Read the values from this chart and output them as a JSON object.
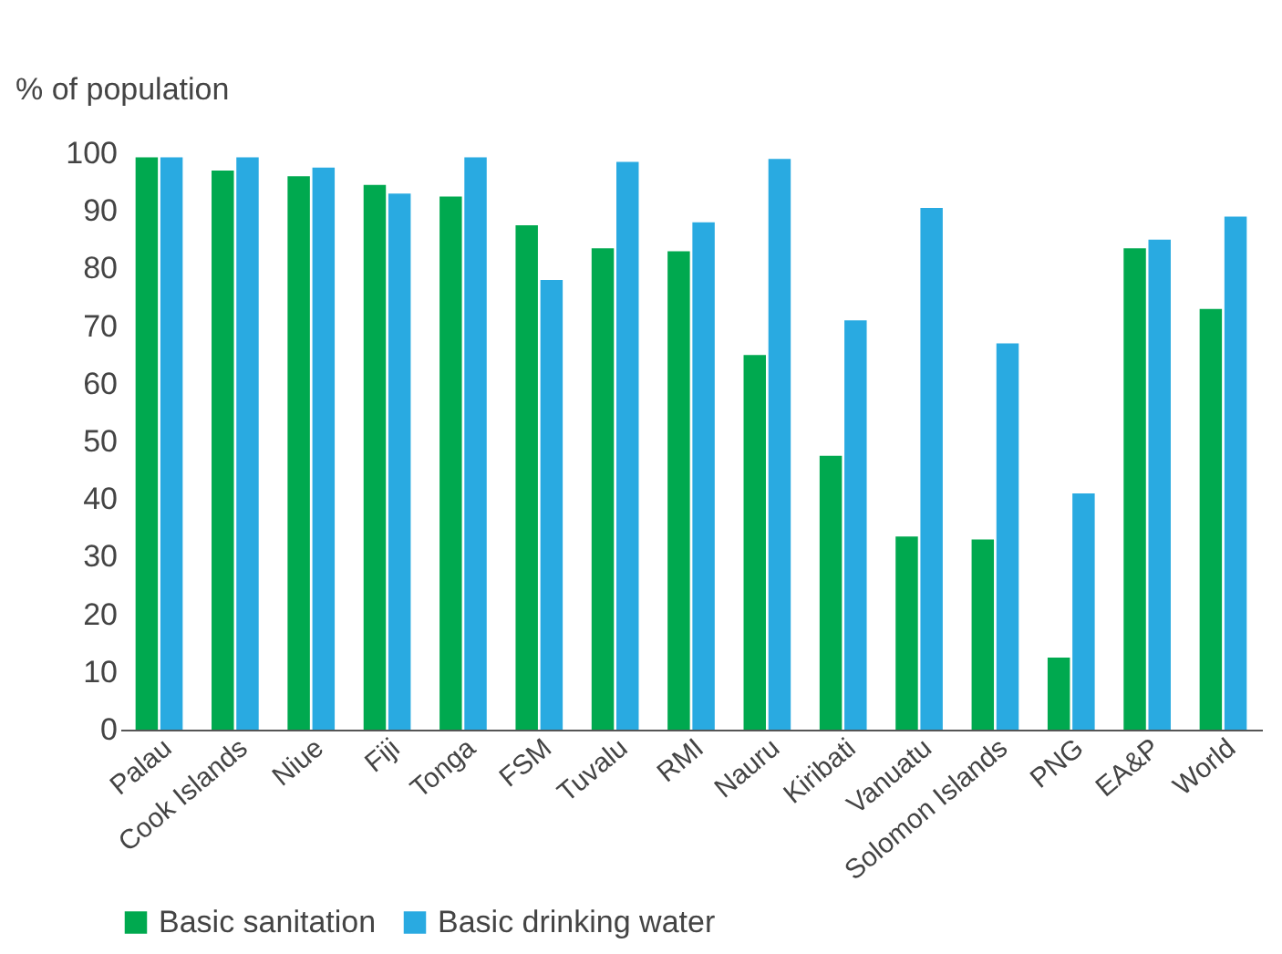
{
  "chart_data": {
    "type": "bar",
    "ylabel": "% of population",
    "categories": [
      "Palau",
      "Cook Islands",
      "Niue",
      "Fiji",
      "Tonga",
      "FSM",
      "Tuvalu",
      "RMI",
      "Nauru",
      "Kiribati",
      "Vanuatu",
      "Solomon Islands",
      "PNG",
      "EA&P",
      "World"
    ],
    "series": [
      {
        "name": "Basic sanitation",
        "color": "#00a94f",
        "values": [
          99.3,
          97,
          96,
          94.5,
          92.5,
          87.5,
          83.5,
          83,
          65,
          47.5,
          33.5,
          33,
          12.5,
          83.5,
          73
        ]
      },
      {
        "name": "Basic drinking water",
        "color": "#29aae1",
        "values": [
          99.3,
          99.3,
          97.5,
          93,
          99.3,
          78,
          98.5,
          88,
          99,
          71,
          90.5,
          67,
          41,
          85,
          89
        ]
      }
    ],
    "ylim": [
      0,
      100
    ],
    "yticks": [
      0,
      10,
      20,
      30,
      40,
      50,
      60,
      70,
      80,
      90,
      100
    ],
    "grid": false,
    "legend": "bottom"
  }
}
